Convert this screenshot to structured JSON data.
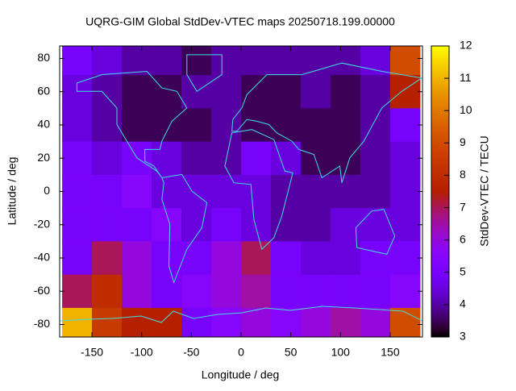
{
  "chart_data": {
    "type": "heatmap",
    "title": "UQRG-GIM Global StdDev-VTEC maps 20250718.199.00000",
    "x_label": "Longitude / deg",
    "y_label": "Latitude / deg",
    "colorbar_label": "StdDev-VTEC / TECU",
    "x": [
      -165,
      -135,
      -105,
      -75,
      -45,
      -15,
      15,
      45,
      75,
      105,
      135,
      165
    ],
    "y": [
      80,
      60,
      40,
      20,
      0,
      -20,
      -40,
      -60,
      -80
    ],
    "z": [
      [
        5,
        4.5,
        4,
        4,
        3.5,
        4,
        4,
        4,
        4,
        4,
        4.5,
        9
      ],
      [
        4.5,
        4,
        3.5,
        3.5,
        4,
        4,
        3.5,
        3.5,
        4,
        3.5,
        4,
        7.5
      ],
      [
        4.5,
        4,
        3.5,
        3.5,
        3.5,
        4,
        3.5,
        3.5,
        3.5,
        3.5,
        4,
        5
      ],
      [
        5,
        4.5,
        5,
        4.5,
        4,
        4,
        5,
        4.5,
        3.5,
        3.5,
        4,
        4.5
      ],
      [
        5,
        5,
        5.5,
        4.5,
        4.5,
        4.5,
        4.5,
        4,
        4,
        4,
        4,
        4.5
      ],
      [
        5,
        5,
        5,
        5.5,
        4.5,
        5,
        4.5,
        4,
        4,
        4.5,
        4.5,
        4.5
      ],
      [
        5,
        7,
        6,
        5,
        5,
        6,
        7,
        5,
        4.5,
        4.5,
        5,
        5
      ],
      [
        7,
        8,
        6,
        5,
        5.5,
        6,
        6.5,
        5,
        5,
        5,
        5,
        5.5
      ],
      [
        11,
        8.5,
        7.5,
        7.5,
        5,
        5.5,
        6,
        5.5,
        6,
        6.5,
        6,
        9
      ]
    ],
    "xlim": [
      -182.5,
      182.5
    ],
    "ylim": [
      -87.5,
      87.5
    ],
    "xticks": [
      -150,
      -100,
      -50,
      0,
      50,
      100,
      150
    ],
    "yticks": [
      -80,
      -60,
      -40,
      -20,
      0,
      20,
      40,
      60,
      80
    ],
    "clim": [
      3,
      12
    ],
    "cticks": [
      3,
      4,
      5,
      6,
      7,
      8,
      9,
      10,
      11,
      12
    ]
  }
}
